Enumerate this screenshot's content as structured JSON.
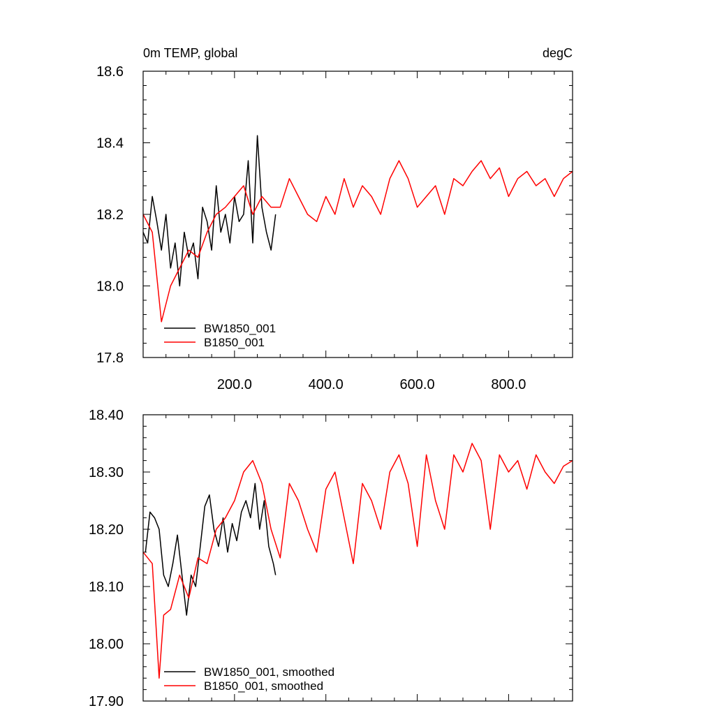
{
  "chart_data": [
    {
      "type": "line",
      "title_left": "0m TEMP, global",
      "title_right": "degC",
      "xlabel": "",
      "ylabel": "",
      "xlim": [
        0,
        940
      ],
      "ylim": [
        17.8,
        18.6
      ],
      "x_ticks": [
        200,
        400,
        600,
        800
      ],
      "x_tick_labels": [
        "200.0",
        "400.0",
        "600.0",
        "800.0"
      ],
      "y_ticks": [
        17.8,
        18.0,
        18.2,
        18.4,
        18.6
      ],
      "y_tick_labels": [
        "17.8",
        "18.0",
        "18.2",
        "18.4",
        "18.6"
      ],
      "legend_position": "bottom-left",
      "series": [
        {
          "name": "BW1850_001",
          "color": "#000000",
          "x": [
            0,
            10,
            20,
            30,
            40,
            50,
            60,
            70,
            80,
            90,
            100,
            110,
            120,
            130,
            140,
            150,
            160,
            170,
            180,
            190,
            200,
            210,
            220,
            230,
            240,
            250,
            260,
            270,
            280,
            290
          ],
          "values": [
            18.15,
            18.12,
            18.25,
            18.18,
            18.1,
            18.2,
            18.05,
            18.12,
            18.0,
            18.15,
            18.08,
            18.12,
            18.02,
            18.22,
            18.18,
            18.1,
            18.28,
            18.15,
            18.2,
            18.12,
            18.25,
            18.18,
            18.2,
            18.35,
            18.12,
            18.42,
            18.22,
            18.15,
            18.1,
            18.2
          ]
        },
        {
          "name": "B1850_001",
          "color": "#ff0000",
          "x": [
            0,
            20,
            40,
            60,
            80,
            100,
            120,
            140,
            160,
            180,
            200,
            220,
            240,
            260,
            280,
            300,
            320,
            340,
            360,
            380,
            400,
            420,
            440,
            460,
            480,
            500,
            520,
            540,
            560,
            580,
            600,
            620,
            640,
            660,
            680,
            700,
            720,
            740,
            760,
            780,
            800,
            820,
            840,
            860,
            880,
            900,
            920,
            940
          ],
          "values": [
            18.2,
            18.15,
            17.9,
            18.0,
            18.05,
            18.1,
            18.08,
            18.15,
            18.2,
            18.22,
            18.25,
            18.28,
            18.2,
            18.25,
            18.22,
            18.22,
            18.3,
            18.25,
            18.2,
            18.18,
            18.25,
            18.2,
            18.3,
            18.22,
            18.28,
            18.25,
            18.2,
            18.3,
            18.35,
            18.3,
            18.22,
            18.25,
            18.28,
            18.2,
            18.3,
            18.28,
            18.32,
            18.35,
            18.3,
            18.33,
            18.25,
            18.3,
            18.32,
            18.28,
            18.3,
            18.25,
            18.3,
            18.32
          ]
        }
      ]
    },
    {
      "type": "line",
      "xlabel": "",
      "ylabel": "",
      "xlim": [
        0,
        940
      ],
      "ylim": [
        17.9,
        18.4
      ],
      "x_ticks": [
        200,
        400,
        600,
        800
      ],
      "y_ticks": [
        17.9,
        18.0,
        18.1,
        18.2,
        18.3,
        18.4
      ],
      "y_tick_labels": [
        "17.90",
        "18.00",
        "18.10",
        "18.20",
        "18.30",
        "18.40"
      ],
      "legend_position": "bottom-left",
      "series": [
        {
          "name": "BW1850_001, smoothed",
          "color": "#000000",
          "x": [
            5,
            15,
            25,
            35,
            45,
            55,
            65,
            75,
            85,
            95,
            105,
            115,
            125,
            135,
            145,
            155,
            165,
            175,
            185,
            195,
            205,
            215,
            225,
            235,
            245,
            255,
            265,
            275,
            285,
            290
          ],
          "values": [
            18.16,
            18.23,
            18.22,
            18.2,
            18.12,
            18.1,
            18.14,
            18.19,
            18.12,
            18.05,
            18.12,
            18.1,
            18.17,
            18.24,
            18.26,
            18.2,
            18.17,
            18.22,
            18.16,
            18.21,
            18.18,
            18.23,
            18.25,
            18.22,
            18.28,
            18.2,
            18.25,
            18.17,
            18.14,
            18.12
          ]
        },
        {
          "name": "B1850_001, smoothed",
          "color": "#ff0000",
          "x": [
            0,
            20,
            35,
            45,
            60,
            80,
            100,
            120,
            140,
            160,
            180,
            200,
            220,
            240,
            260,
            280,
            300,
            320,
            340,
            360,
            380,
            400,
            420,
            440,
            460,
            480,
            500,
            520,
            540,
            560,
            580,
            600,
            620,
            640,
            660,
            680,
            700,
            720,
            740,
            760,
            780,
            800,
            820,
            840,
            860,
            880,
            900,
            920,
            940
          ],
          "values": [
            18.16,
            18.14,
            17.94,
            18.05,
            18.06,
            18.12,
            18.08,
            18.15,
            18.14,
            18.2,
            18.22,
            18.25,
            18.3,
            18.32,
            18.28,
            18.2,
            18.15,
            18.28,
            18.25,
            18.2,
            18.16,
            18.27,
            18.3,
            18.22,
            18.14,
            18.28,
            18.25,
            18.2,
            18.3,
            18.33,
            18.28,
            18.17,
            18.33,
            18.25,
            18.2,
            18.33,
            18.3,
            18.35,
            18.32,
            18.2,
            18.33,
            18.3,
            18.32,
            18.27,
            18.33,
            18.3,
            18.28,
            18.31,
            18.32
          ]
        }
      ]
    }
  ]
}
